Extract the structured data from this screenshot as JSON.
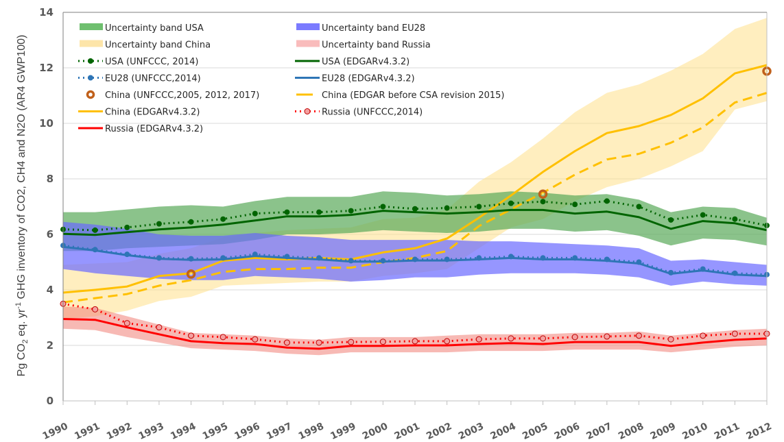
{
  "chart_data": {
    "type": "line",
    "title": "",
    "xlabel": "",
    "ylabel_parts": {
      "prefix": "Pg CO",
      "sub": "2",
      "middle": " eq. yr",
      "sup": "-1",
      "suffix": " GHG inventory of CO2, CH4 and N2O (AR4 GWP100)"
    },
    "ylim": [
      0,
      14
    ],
    "yticks": [
      0,
      2,
      4,
      6,
      8,
      10,
      12,
      14
    ],
    "grid": "horizontal",
    "legend_placement": "top-left, two columns",
    "x": [
      1990,
      1991,
      1992,
      1993,
      1994,
      1995,
      1996,
      1997,
      1998,
      1999,
      2000,
      2001,
      2002,
      2003,
      2004,
      2005,
      2006,
      2007,
      2008,
      2009,
      2010,
      2011,
      2012
    ],
    "bands": [
      {
        "name": "Uncertainty band China",
        "color": "#ffe08a",
        "opacity": 0.55,
        "upper": [
          4.9,
          4.95,
          5.0,
          5.3,
          5.5,
          5.9,
          6.05,
          6.15,
          6.2,
          6.25,
          6.55,
          6.6,
          6.9,
          7.9,
          8.6,
          9.45,
          10.4,
          11.1,
          11.4,
          11.9,
          12.5,
          13.4,
          13.8
        ],
        "lower": [
          2.95,
          3.05,
          3.25,
          3.6,
          3.75,
          4.15,
          4.2,
          4.25,
          4.3,
          4.3,
          4.5,
          4.6,
          4.75,
          5.5,
          6.25,
          6.55,
          7.2,
          7.7,
          8.0,
          8.45,
          9.0,
          10.5,
          10.8
        ]
      },
      {
        "name": "Uncertainty band USA",
        "color": "#5aaa5a",
        "opacity": 0.7,
        "upper": [
          6.8,
          6.8,
          6.9,
          7.0,
          7.05,
          7.0,
          7.2,
          7.35,
          7.35,
          7.35,
          7.55,
          7.5,
          7.4,
          7.45,
          7.55,
          7.5,
          7.4,
          7.45,
          7.25,
          6.8,
          7.0,
          6.95,
          6.6
        ],
        "lower": [
          5.4,
          5.4,
          5.5,
          5.55,
          5.6,
          5.65,
          5.8,
          6.0,
          6.0,
          6.05,
          6.15,
          6.1,
          6.05,
          6.1,
          6.2,
          6.2,
          6.1,
          6.15,
          5.95,
          5.6,
          5.85,
          5.8,
          5.6
        ]
      },
      {
        "name": "Uncertainty band EU28",
        "color": "#6a6aff",
        "opacity": 0.7,
        "upper": [
          6.45,
          6.35,
          6.2,
          6.0,
          5.95,
          5.95,
          6.05,
          5.95,
          5.9,
          5.8,
          5.8,
          5.8,
          5.8,
          5.75,
          5.75,
          5.7,
          5.65,
          5.6,
          5.5,
          5.05,
          5.1,
          5.0,
          4.9
        ],
        "lower": [
          4.75,
          4.6,
          4.5,
          4.4,
          4.35,
          4.35,
          4.5,
          4.45,
          4.4,
          4.3,
          4.35,
          4.45,
          4.45,
          4.55,
          4.6,
          4.6,
          4.6,
          4.55,
          4.45,
          4.15,
          4.3,
          4.2,
          4.15
        ]
      },
      {
        "name": "Uncertainty band Russia",
        "color": "#f28b82",
        "opacity": 0.6,
        "upper": [
          3.4,
          3.35,
          3.05,
          2.75,
          2.45,
          2.4,
          2.35,
          2.25,
          2.2,
          2.3,
          2.3,
          2.3,
          2.35,
          2.4,
          2.4,
          2.4,
          2.45,
          2.45,
          2.5,
          2.35,
          2.45,
          2.55,
          2.6
        ],
        "lower": [
          2.6,
          2.55,
          2.3,
          2.1,
          1.9,
          1.85,
          1.8,
          1.7,
          1.65,
          1.75,
          1.75,
          1.75,
          1.75,
          1.8,
          1.8,
          1.8,
          1.85,
          1.85,
          1.85,
          1.75,
          1.85,
          1.95,
          2.0
        ]
      }
    ],
    "series": [
      {
        "name": "China (EDGARv4.3.2)",
        "color": "#ffc000",
        "style": "solid",
        "values": [
          3.9,
          4.0,
          4.12,
          4.5,
          4.6,
          5.05,
          5.15,
          5.1,
          5.15,
          5.1,
          5.35,
          5.5,
          5.85,
          6.6,
          7.4,
          8.25,
          9.0,
          9.65,
          9.9,
          10.3,
          10.9,
          11.8,
          12.1
        ]
      },
      {
        "name": "China (EDGAR before CSA revision 2015)",
        "color": "#ffc000",
        "style": "dashed",
        "values": [
          3.55,
          3.7,
          3.85,
          4.15,
          4.35,
          4.65,
          4.75,
          4.75,
          4.8,
          4.8,
          5.0,
          5.15,
          5.4,
          6.3,
          6.9,
          7.5,
          8.15,
          8.7,
          8.9,
          9.3,
          9.85,
          10.75,
          11.1
        ]
      },
      {
        "name": "USA (EDGARv4.3.2)",
        "color": "#006400",
        "style": "solid",
        "values": [
          6.02,
          5.98,
          6.08,
          6.18,
          6.25,
          6.35,
          6.5,
          6.65,
          6.65,
          6.7,
          6.85,
          6.8,
          6.75,
          6.8,
          6.88,
          6.88,
          6.75,
          6.82,
          6.62,
          6.2,
          6.48,
          6.4,
          6.15
        ]
      },
      {
        "name": "USA (UNFCCC, 2014)",
        "color": "#006400",
        "style": "dotted",
        "marker": "dot",
        "values": [
          6.18,
          6.15,
          6.25,
          6.38,
          6.45,
          6.55,
          6.75,
          6.8,
          6.8,
          6.85,
          7.0,
          6.92,
          6.95,
          7.0,
          7.12,
          7.18,
          7.08,
          7.2,
          7.0,
          6.52,
          6.7,
          6.55,
          6.32
        ]
      },
      {
        "name": "EU28 (EDGARv4.3.2)",
        "color": "#2e75b6",
        "style": "solid",
        "values": [
          5.55,
          5.42,
          5.25,
          5.12,
          5.08,
          5.1,
          5.22,
          5.15,
          5.1,
          5.02,
          5.02,
          5.06,
          5.06,
          5.1,
          5.15,
          5.1,
          5.1,
          5.05,
          4.95,
          4.58,
          4.7,
          4.55,
          4.5
        ]
      },
      {
        "name": "EU28 (UNFCCC,2014)",
        "color": "#2e75b6",
        "style": "dotted",
        "marker": "dot",
        "values": [
          5.6,
          5.45,
          5.28,
          5.15,
          5.12,
          5.15,
          5.28,
          5.2,
          5.15,
          5.05,
          5.05,
          5.1,
          5.1,
          5.15,
          5.2,
          5.15,
          5.15,
          5.1,
          5.0,
          4.62,
          4.75,
          4.6,
          4.55
        ]
      },
      {
        "name": "Russia (EDGARv4.3.2)",
        "color": "#ff0000",
        "style": "solid",
        "values": [
          2.95,
          2.92,
          2.65,
          2.4,
          2.15,
          2.08,
          2.05,
          1.92,
          1.88,
          1.98,
          1.98,
          2.0,
          2.0,
          2.05,
          2.08,
          2.05,
          2.12,
          2.12,
          2.12,
          1.98,
          2.1,
          2.2,
          2.25
        ]
      },
      {
        "name": "Russia (UNFCCC,2014)",
        "color": "#ff0000",
        "style": "dotted",
        "marker": "open-circle",
        "marker_fill": "#f4a0a0",
        "values": [
          3.5,
          3.3,
          2.8,
          2.65,
          2.35,
          2.3,
          2.22,
          2.1,
          2.1,
          2.12,
          2.13,
          2.15,
          2.15,
          2.22,
          2.25,
          2.25,
          2.3,
          2.32,
          2.35,
          2.22,
          2.35,
          2.42,
          2.42
        ]
      },
      {
        "name": "China (UNFCCC,2005, 2012, 2017)",
        "color": "#c0601a",
        "style": "markers-only",
        "marker": "ring",
        "points": [
          {
            "x": 1994,
            "y": 4.57
          },
          {
            "x": 2005,
            "y": 7.45
          },
          {
            "x": 2012,
            "y": 11.88
          }
        ]
      }
    ],
    "legend": [
      {
        "label": "Uncertainty band USA",
        "kind": "band",
        "color": "#6fbf6f"
      },
      {
        "label": "Uncertainty band EU28",
        "kind": "band",
        "color": "#7b7bff"
      },
      {
        "label": "Uncertainty band China",
        "kind": "band",
        "color": "#fde5a9"
      },
      {
        "label": "Uncertainty band Russia",
        "kind": "band",
        "color": "#f9bcbc"
      },
      {
        "label": "USA (UNFCCC, 2014)",
        "kind": "dotted-marker",
        "color": "#006400"
      },
      {
        "label": "USA (EDGARv4.3.2)",
        "kind": "solid",
        "color": "#006400"
      },
      {
        "label": "EU28 (UNFCCC,2014)",
        "kind": "dotted-marker",
        "color": "#2e75b6"
      },
      {
        "label": "EU28 (EDGARv4.3.2)",
        "kind": "solid",
        "color": "#2e75b6"
      },
      {
        "label": "China (UNFCCC,2005, 2012, 2017)",
        "kind": "ring",
        "color": "#c0601a"
      },
      {
        "label": "China (EDGAR before CSA revision 2015)",
        "kind": "dashed",
        "color": "#ffc000"
      },
      {
        "label": "China (EDGARv4.3.2)",
        "kind": "solid",
        "color": "#ffc000"
      },
      {
        "label": "Russia (UNFCCC,2014)",
        "kind": "dotted-open-marker",
        "color": "#ff0000"
      },
      {
        "label": "Russia (EDGARv4.3.2)",
        "kind": "solid",
        "color": "#ff0000"
      }
    ]
  }
}
